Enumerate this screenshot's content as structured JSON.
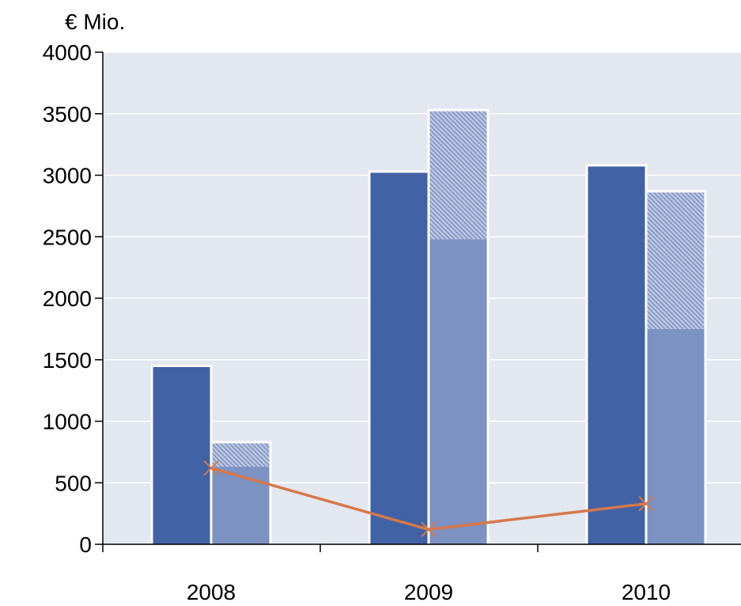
{
  "chart_data": {
    "type": "bar",
    "title": "",
    "ylabel": "€ Mio.",
    "xlabel": "",
    "categories": [
      "2008",
      "2009",
      "2010"
    ],
    "ylim": [
      0,
      4000
    ],
    "yticks": [
      0,
      500,
      1000,
      1500,
      2000,
      2500,
      3000,
      3500,
      4000
    ],
    "grid": true,
    "legend": "none",
    "series": [
      {
        "kind": "bar",
        "stack": "a",
        "values": [
          1450,
          3030,
          3080
        ],
        "color": "#4262a6",
        "pattern": "solid"
      },
      {
        "kind": "bar",
        "stack": "b",
        "values": [
          630,
          2480,
          1750
        ],
        "color": "#7b92c2",
        "pattern": "solid"
      },
      {
        "kind": "bar",
        "stack": "b",
        "values": [
          200,
          1050,
          1120
        ],
        "color": "#7b92c2",
        "pattern": "hatched"
      },
      {
        "kind": "line",
        "values": [
          620,
          120,
          330
        ],
        "color": "#d6784a",
        "marker": "x"
      }
    ],
    "colors": {
      "plot_background": "#e3e7f0",
      "gridline": "#ffffff",
      "bar_outline": "#ffffff",
      "axis": "#000000"
    }
  }
}
